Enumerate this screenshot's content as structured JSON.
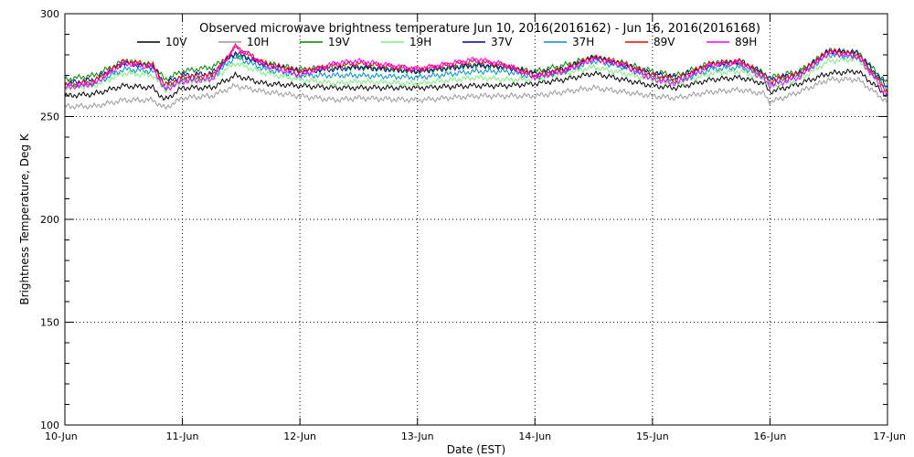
{
  "chart_data": {
    "type": "line",
    "title": "Observed microwave brightness temperature Jun 10, 2016(2016162) - Jun 16, 2016(2016168)",
    "xlabel": "Date (EST)",
    "ylabel": "Brightness Temperature, Deg K",
    "xlim": [
      0,
      7
    ],
    "ylim": [
      100,
      300
    ],
    "x_ticks": [
      0,
      1,
      2,
      3,
      4,
      5,
      6,
      7
    ],
    "x_tick_labels": [
      "10-Jun",
      "11-Jun",
      "12-Jun",
      "13-Jun",
      "14-Jun",
      "15-Jun",
      "16-Jun",
      "17-Jun"
    ],
    "y_ticks": [
      100,
      150,
      200,
      250,
      300
    ],
    "y_tick_labels": [
      "100",
      "150",
      "200",
      "250",
      "300"
    ],
    "grid": true,
    "x": [
      0,
      0.25,
      0.5,
      0.75,
      0.85,
      1.0,
      1.25,
      1.45,
      1.7,
      2.0,
      2.3,
      2.5,
      3.0,
      3.5,
      3.75,
      4.0,
      4.25,
      4.5,
      4.75,
      5.0,
      5.2,
      5.5,
      5.75,
      5.95,
      6.0,
      6.25,
      6.5,
      6.75,
      7.0
    ],
    "series": [
      {
        "name": "10V",
        "color": "#000000",
        "values": [
          260,
          261,
          265,
          264,
          258,
          264,
          264,
          270,
          266,
          265,
          264,
          264,
          264,
          265,
          265,
          266,
          268,
          271,
          268,
          265,
          264,
          268,
          269,
          266,
          262,
          266,
          271,
          272,
          260
        ]
      },
      {
        "name": "10H",
        "color": "#999999",
        "values": [
          255,
          255,
          258,
          258,
          254,
          259,
          260,
          265,
          262,
          260,
          258,
          259,
          258,
          260,
          260,
          260,
          262,
          264,
          262,
          260,
          259,
          262,
          263,
          261,
          257,
          262,
          268,
          268,
          257
        ]
      },
      {
        "name": "19V",
        "color": "#008000",
        "values": [
          268,
          270,
          277,
          275,
          268,
          272,
          274,
          280,
          276,
          273,
          274,
          274,
          272,
          275,
          274,
          272,
          275,
          279,
          276,
          272,
          270,
          276,
          276,
          271,
          269,
          272,
          282,
          281,
          266
        ]
      },
      {
        "name": "19H",
        "color": "#80ee80",
        "values": [
          264,
          265,
          271,
          270,
          263,
          267,
          268,
          276,
          271,
          268,
          266,
          267,
          266,
          269,
          268,
          268,
          271,
          274,
          271,
          268,
          266,
          271,
          272,
          268,
          264,
          268,
          277,
          278,
          262
        ]
      },
      {
        "name": "37V",
        "color": "#000090",
        "values": [
          266,
          268,
          276,
          274,
          266,
          270,
          271,
          281,
          275,
          272,
          273,
          274,
          272,
          275,
          274,
          271,
          273,
          279,
          275,
          271,
          269,
          275,
          277,
          271,
          268,
          271,
          282,
          281,
          264
        ]
      },
      {
        "name": "37H",
        "color": "#0090c0",
        "values": [
          265,
          266,
          273,
          272,
          264,
          268,
          269,
          279,
          273,
          270,
          270,
          270,
          269,
          272,
          272,
          269,
          272,
          277,
          274,
          269,
          267,
          273,
          274,
          270,
          266,
          270,
          280,
          279,
          263
        ]
      },
      {
        "name": "89V",
        "color": "#ff0000",
        "values": [
          265,
          267,
          277,
          275,
          265,
          269,
          270,
          284,
          276,
          272,
          275,
          276,
          273,
          277,
          275,
          270,
          273,
          279,
          276,
          270,
          268,
          276,
          277,
          270,
          267,
          271,
          282,
          280,
          262
        ]
      },
      {
        "name": "89H",
        "color": "#ff00ff",
        "values": [
          264,
          266,
          276,
          274,
          263,
          267,
          268,
          284,
          275,
          270,
          276,
          277,
          273,
          278,
          275,
          269,
          272,
          278,
          275,
          268,
          266,
          275,
          276,
          268,
          265,
          269,
          281,
          279,
          260
        ]
      }
    ],
    "legend_position": "top"
  }
}
